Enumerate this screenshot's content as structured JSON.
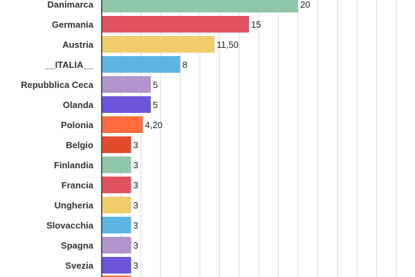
{
  "chart_data": {
    "type": "bar",
    "orientation": "horizontal",
    "categories": [
      "Danimarca",
      "Germania",
      "Austria",
      "__ITALIA__",
      "Repubblica Ceca",
      "Olanda",
      "Polonia",
      "Belgio",
      "Finlandia",
      "Francia",
      "Ungheria",
      "Slovacchia",
      "Spagna",
      "Svezia"
    ],
    "values": [
      20,
      15,
      11.5,
      8,
      5,
      5,
      4.2,
      3,
      3,
      3,
      3,
      3,
      3,
      3
    ],
    "value_labels": [
      "20",
      "15",
      "11,50",
      "8",
      "5",
      "5",
      "4,20",
      "3",
      "3",
      "3",
      "3",
      "3",
      "3",
      "3"
    ],
    "colors": [
      "#8fc7a8",
      "#e0535d",
      "#f0cd6c",
      "#5bb4e4",
      "#b094cb",
      "#6e54d9",
      "#fe6c3d",
      "#e34b2b",
      "#8fc7a8",
      "#e0535d",
      "#f0cd6c",
      "#5bb4e4",
      "#b094cb",
      "#6e54d9"
    ],
    "xlim": [
      0,
      30
    ],
    "grid": true,
    "title": "",
    "xlabel": "",
    "ylabel": ""
  }
}
